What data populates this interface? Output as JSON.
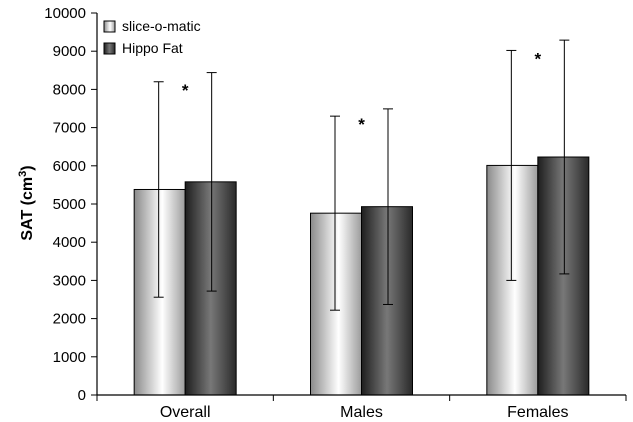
{
  "chart_data": {
    "type": "bar",
    "categories": [
      "Overall",
      "Males",
      "Females"
    ],
    "series": [
      {
        "name": "slice-o-matic",
        "values": [
          5380,
          4760,
          6010
        ],
        "error": [
          2820,
          2540,
          3010
        ],
        "colors": [
          "#8a8a8a",
          "#ffffff",
          "#9c9c9c"
        ]
      },
      {
        "name": "Hippo Fat",
        "values": [
          5580,
          4930,
          6230
        ],
        "error": [
          2860,
          2560,
          3060
        ],
        "colors": [
          "#1e1e1e",
          "#787878",
          "#2a2a2a"
        ]
      }
    ],
    "significance": [
      "*",
      "*",
      "*"
    ],
    "ylabel_prefix": "SAT (cm",
    "ylabel_sup": "3",
    "ylabel_suffix": ")",
    "ylim": [
      0,
      10000
    ],
    "yticks": [
      0,
      1000,
      2000,
      3000,
      4000,
      5000,
      6000,
      7000,
      8000,
      9000,
      10000
    ],
    "legend_position": "top-left",
    "grid": false
  }
}
